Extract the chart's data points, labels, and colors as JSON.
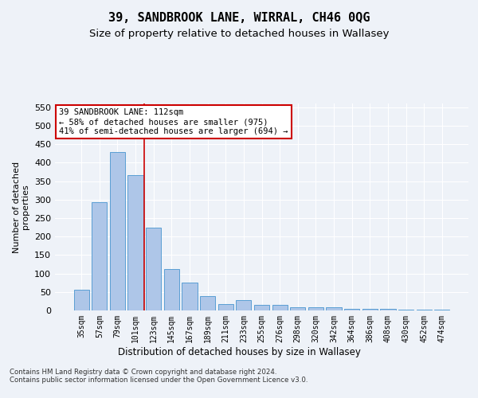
{
  "title": "39, SANDBROOK LANE, WIRRAL, CH46 0QG",
  "subtitle": "Size of property relative to detached houses in Wallasey",
  "xlabel": "Distribution of detached houses by size in Wallasey",
  "ylabel": "Number of detached\nproperties",
  "categories": [
    "35sqm",
    "57sqm",
    "79sqm",
    "101sqm",
    "123sqm",
    "145sqm",
    "167sqm",
    "189sqm",
    "211sqm",
    "233sqm",
    "255sqm",
    "276sqm",
    "298sqm",
    "320sqm",
    "342sqm",
    "364sqm",
    "386sqm",
    "408sqm",
    "430sqm",
    "452sqm",
    "474sqm"
  ],
  "values": [
    57,
    293,
    428,
    367,
    224,
    113,
    75,
    38,
    18,
    29,
    16,
    16,
    9,
    8,
    8,
    4,
    4,
    4,
    2,
    2,
    3
  ],
  "bar_color": "#aec6e8",
  "bar_edge_color": "#5a9fd4",
  "vline_x": 3.5,
  "vline_color": "#cc0000",
  "annotation_text": "39 SANDBROOK LANE: 112sqm\n← 58% of detached houses are smaller (975)\n41% of semi-detached houses are larger (694) →",
  "annotation_box_color": "#ffffff",
  "annotation_box_edge": "#cc0000",
  "ylim": [
    0,
    560
  ],
  "yticks": [
    0,
    50,
    100,
    150,
    200,
    250,
    300,
    350,
    400,
    450,
    500,
    550
  ],
  "footer": "Contains HM Land Registry data © Crown copyright and database right 2024.\nContains public sector information licensed under the Open Government Licence v3.0.",
  "bg_color": "#eef2f8",
  "plot_bg_color": "#eef2f8",
  "grid_color": "#ffffff",
  "title_fontsize": 11,
  "subtitle_fontsize": 9.5
}
